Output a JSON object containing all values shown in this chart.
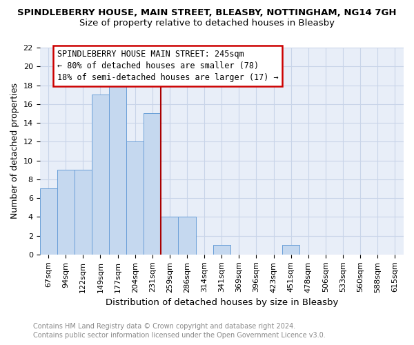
{
  "title": "SPINDLEBERRY HOUSE, MAIN STREET, BLEASBY, NOTTINGHAM, NG14 7GH",
  "subtitle": "Size of property relative to detached houses in Bleasby",
  "xlabel": "Distribution of detached houses by size in Bleasby",
  "ylabel": "Number of detached properties",
  "footnote1": "Contains HM Land Registry data © Crown copyright and database right 2024.",
  "footnote2": "Contains public sector information licensed under the Open Government Licence v3.0.",
  "bar_labels": [
    "67sqm",
    "94sqm",
    "122sqm",
    "149sqm",
    "177sqm",
    "204sqm",
    "231sqm",
    "259sqm",
    "286sqm",
    "314sqm",
    "341sqm",
    "369sqm",
    "396sqm",
    "423sqm",
    "451sqm",
    "478sqm",
    "506sqm",
    "533sqm",
    "560sqm",
    "588sqm",
    "615sqm"
  ],
  "bar_values": [
    7,
    9,
    9,
    17,
    18,
    12,
    15,
    4,
    4,
    0,
    1,
    0,
    0,
    0,
    1,
    0,
    0,
    0,
    0,
    0,
    0
  ],
  "bar_color": "#c5d8ef",
  "bar_edge_color": "#6a9fd8",
  "bar_edge_width": 0.7,
  "grid_color": "#c8d4e8",
  "background_color": "#e8eef8",
  "ylim": [
    0,
    22
  ],
  "yticks": [
    0,
    2,
    4,
    6,
    8,
    10,
    12,
    14,
    16,
    18,
    20,
    22
  ],
  "vline_x": 6.5,
  "vline_color": "#aa0000",
  "annotation_line1": "SPINDLEBERRY HOUSE MAIN STREET: 245sqm",
  "annotation_line2": "← 80% of detached houses are smaller (78)",
  "annotation_line3": "18% of semi-detached houses are larger (17) →",
  "title_fontsize": 9.5,
  "subtitle_fontsize": 9.5,
  "xlabel_fontsize": 9.5,
  "ylabel_fontsize": 9,
  "tick_fontsize": 8,
  "annot_fontsize": 8.5,
  "footnote_fontsize": 7
}
